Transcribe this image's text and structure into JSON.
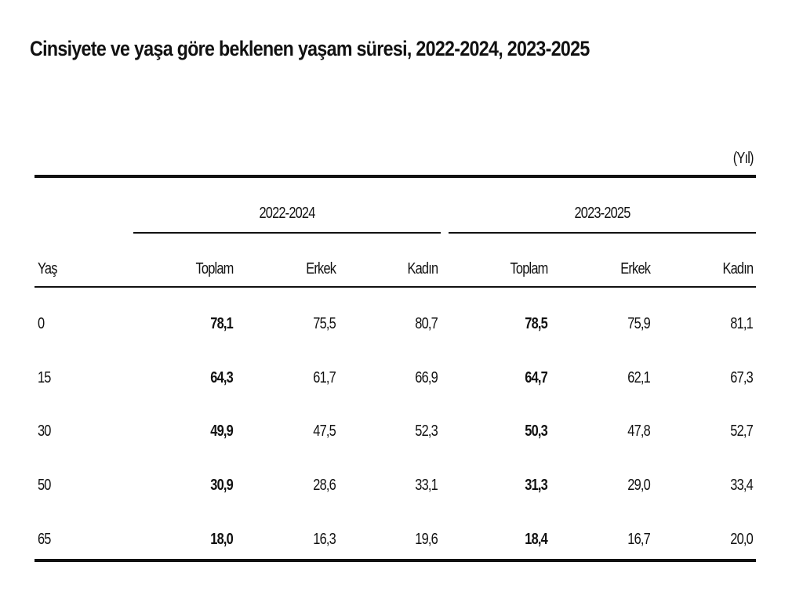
{
  "title": "Cinsiyete ve yaşa göre beklenen yaşam süresi, 2022-2024, 2023-2025",
  "unit": "(Yıl)",
  "table": {
    "groups": [
      "2022-2024",
      "2023-2025"
    ],
    "columns": [
      "Yaş",
      "Toplam",
      "Erkek",
      "Kadın",
      "Toplam",
      "Erkek",
      "Kadın"
    ],
    "rows": [
      [
        "0",
        "78,1",
        "75,5",
        "80,7",
        "78,5",
        "75,9",
        "81,1"
      ],
      [
        "15",
        "64,3",
        "61,7",
        "66,9",
        "64,7",
        "62,1",
        "67,3"
      ],
      [
        "30",
        "49,9",
        "47,5",
        "52,3",
        "50,3",
        "47,8",
        "52,7"
      ],
      [
        "50",
        "30,9",
        "28,6",
        "33,1",
        "31,3",
        "29,0",
        "33,4"
      ],
      [
        "65",
        "18,0",
        "16,3",
        "19,6",
        "18,4",
        "16,7",
        "20,0"
      ]
    ]
  }
}
